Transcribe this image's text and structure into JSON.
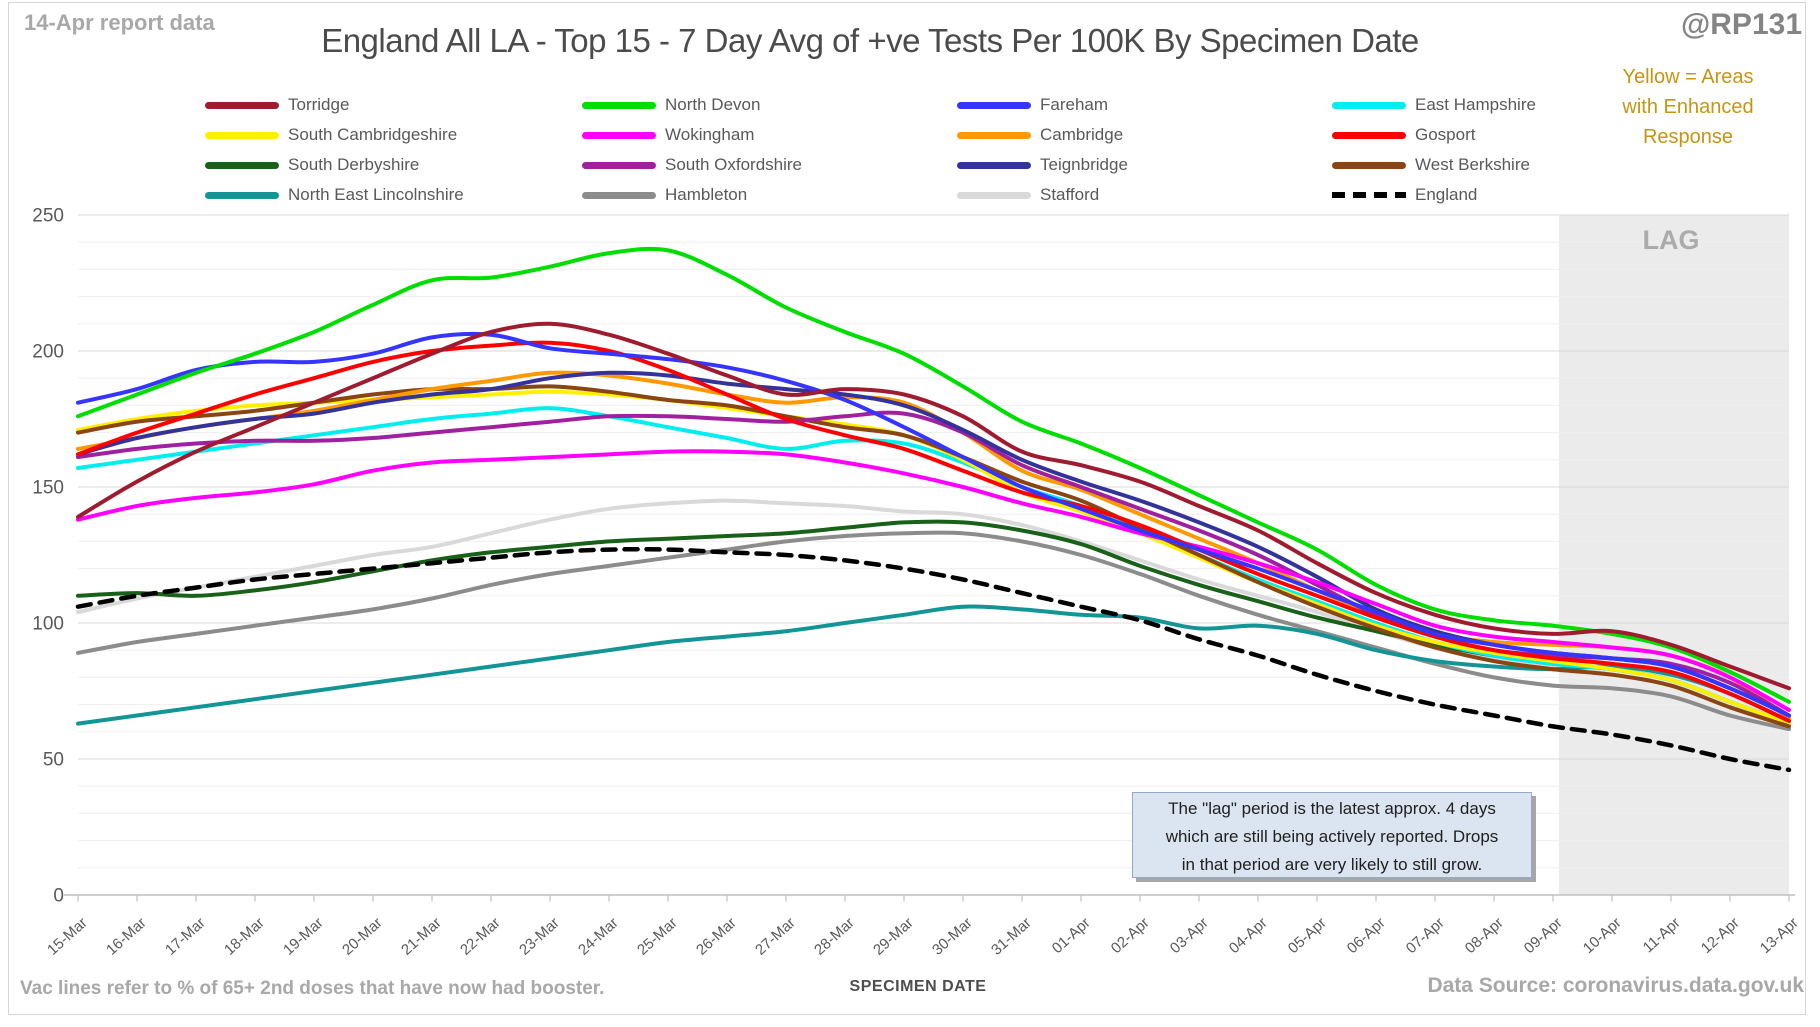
{
  "header": {
    "report_note": "14-Apr report data",
    "handle": "@RP131"
  },
  "annotations": {
    "enhanced_note": [
      "Yellow = Areas",
      "with Enhanced",
      "Response"
    ],
    "lag_note": [
      "The \"lag\" period is the latest approx. 4 days",
      "which are still being actively reported. Drops",
      "in that period are very likely to still grow."
    ],
    "lag_label": "LAG",
    "footer_left": "Vac lines refer to % of 65+ 2nd doses that have now had booster.",
    "source": "Data Source: coronavirus.data.gov.uk"
  },
  "ui_colors": {
    "grid_minor": "#efefef",
    "grid_major": "#d9d9d9",
    "axis_line": "#bfbfbf",
    "tick_label": "#595959",
    "lag_fill": "#ebebeb",
    "lag_text": "#ababab",
    "note_bg": "#dbe5f2",
    "enhanced_text": "#c79414"
  },
  "chart_data": {
    "type": "line",
    "title": "England All LA - Top 15 - 7 Day Avg of +ve Tests Per 100K By Specimen Date",
    "xlabel": "SPECIMEN DATE",
    "ylabel": "",
    "ylim": [
      0,
      250
    ],
    "yticks": [
      0,
      50,
      100,
      150,
      200,
      250
    ],
    "minor_grid_step": 10,
    "grid": true,
    "legend_position": "top",
    "lag_region": {
      "start_index": 25.1,
      "label": "LAG",
      "covers": "approx. last 4 days"
    },
    "x": [
      "15-Mar",
      "16-Mar",
      "17-Mar",
      "18-Mar",
      "19-Mar",
      "20-Mar",
      "21-Mar",
      "22-Mar",
      "23-Mar",
      "24-Mar",
      "25-Mar",
      "26-Mar",
      "27-Mar",
      "28-Mar",
      "29-Mar",
      "30-Mar",
      "31-Mar",
      "01-Apr",
      "02-Apr",
      "03-Apr",
      "04-Apr",
      "05-Apr",
      "06-Apr",
      "07-Apr",
      "08-Apr",
      "09-Apr",
      "10-Apr",
      "11-Apr",
      "12-Apr",
      "13-Apr"
    ],
    "series": [
      {
        "name": "Torridge",
        "color": "#9e1b30",
        "dash": false,
        "values": [
          139,
          152,
          163,
          172,
          181,
          190,
          199,
          207,
          210,
          206,
          199,
          191,
          184,
          186,
          184,
          176,
          163,
          158,
          152,
          143,
          134,
          122,
          111,
          103,
          98,
          96,
          97,
          92,
          84,
          76
        ]
      },
      {
        "name": "North Devon",
        "color": "#00dd00",
        "dash": false,
        "values": [
          176,
          184,
          192,
          199,
          207,
          217,
          226,
          227,
          231,
          236,
          237,
          228,
          216,
          207,
          199,
          187,
          174,
          166,
          157,
          147,
          137,
          127,
          114,
          105,
          101,
          99,
          96,
          91,
          82,
          71
        ]
      },
      {
        "name": "Fareham",
        "color": "#3535ff",
        "dash": false,
        "values": [
          181,
          186,
          193,
          196,
          196,
          199,
          205,
          206,
          201,
          199,
          197,
          194,
          189,
          182,
          172,
          161,
          150,
          142,
          134,
          127,
          120,
          112,
          104,
          96,
          92,
          89,
          87,
          84,
          76,
          66
        ]
      },
      {
        "name": "East Hampshire",
        "color": "#00eeee",
        "dash": false,
        "values": [
          157,
          160,
          163,
          166,
          169,
          172,
          175,
          177,
          179,
          176,
          172,
          168,
          164,
          167,
          166,
          159,
          150,
          143,
          134,
          125,
          116,
          108,
          100,
          93,
          88,
          85,
          83,
          79,
          71,
          63
        ]
      },
      {
        "name": "South Cambridgeshire",
        "color": "#fff000",
        "dash": false,
        "values": [
          171,
          175,
          178,
          180,
          181,
          182,
          183,
          184,
          185,
          184,
          182,
          179,
          176,
          173,
          169,
          160,
          148,
          141,
          133,
          124,
          115,
          107,
          99,
          93,
          89,
          86,
          83,
          79,
          71,
          63
        ]
      },
      {
        "name": "Wokingham",
        "color": "#ff00ff",
        "dash": false,
        "values": [
          138,
          143,
          146,
          148,
          151,
          156,
          159,
          160,
          161,
          162,
          163,
          163,
          162,
          159,
          155,
          150,
          144,
          139,
          133,
          128,
          122,
          115,
          107,
          99,
          95,
          93,
          91,
          88,
          80,
          68
        ]
      },
      {
        "name": "Cambridge",
        "color": "#ff9900",
        "dash": false,
        "values": [
          164,
          168,
          172,
          175,
          178,
          182,
          186,
          189,
          192,
          191,
          188,
          184,
          181,
          183,
          181,
          170,
          156,
          149,
          140,
          131,
          122,
          112,
          103,
          96,
          93,
          92,
          91,
          88,
          80,
          65
        ]
      },
      {
        "name": "Gosport",
        "color": "#fe0000",
        "dash": false,
        "values": [
          162,
          170,
          177,
          184,
          190,
          196,
          200,
          202,
          203,
          200,
          193,
          184,
          175,
          169,
          164,
          156,
          148,
          143,
          136,
          127,
          118,
          110,
          102,
          95,
          90,
          87,
          85,
          82,
          74,
          64
        ]
      },
      {
        "name": "South Derbyshire",
        "color": "#186118",
        "dash": false,
        "values": [
          110,
          111,
          110,
          112,
          115,
          119,
          123,
          126,
          128,
          130,
          131,
          132,
          133,
          135,
          137,
          137,
          134,
          129,
          121,
          114,
          108,
          102,
          97,
          92,
          88,
          85,
          83,
          79,
          71,
          63
        ]
      },
      {
        "name": "South Oxfordshire",
        "color": "#a020a0",
        "dash": false,
        "values": [
          161,
          164,
          166,
          167,
          167,
          168,
          170,
          172,
          174,
          176,
          176,
          175,
          174,
          176,
          177,
          170,
          158,
          150,
          142,
          134,
          125,
          114,
          103,
          95,
          90,
          88,
          87,
          85,
          78,
          66
        ]
      },
      {
        "name": "Teignbridge",
        "color": "#333399",
        "dash": false,
        "values": [
          162,
          168,
          172,
          175,
          177,
          181,
          184,
          186,
          190,
          192,
          191,
          188,
          186,
          184,
          180,
          171,
          160,
          152,
          145,
          137,
          128,
          117,
          105,
          97,
          92,
          89,
          87,
          84,
          76,
          66
        ]
      },
      {
        "name": "West Berkshire",
        "color": "#8b4513",
        "dash": false,
        "values": [
          170,
          174,
          176,
          178,
          181,
          184,
          186,
          186,
          187,
          185,
          182,
          180,
          176,
          172,
          169,
          161,
          152,
          145,
          135,
          125,
          115,
          106,
          98,
          91,
          86,
          83,
          81,
          77,
          69,
          62
        ]
      },
      {
        "name": "North East Lincolnshire",
        "color": "#149595",
        "dash": false,
        "values": [
          63,
          66,
          69,
          72,
          75,
          78,
          81,
          84,
          87,
          90,
          93,
          95,
          97,
          100,
          103,
          106,
          105,
          103,
          102,
          98,
          99,
          96,
          90,
          86,
          84,
          83,
          84,
          81,
          74,
          64
        ]
      },
      {
        "name": "Hambleton",
        "color": "#8c8c8c",
        "dash": false,
        "values": [
          89,
          93,
          96,
          99,
          102,
          105,
          109,
          114,
          118,
          121,
          124,
          127,
          130,
          132,
          133,
          133,
          130,
          125,
          118,
          110,
          103,
          97,
          91,
          85,
          80,
          77,
          76,
          73,
          66,
          61
        ]
      },
      {
        "name": "Stafford",
        "color": "#d9d9d9",
        "dash": false,
        "values": [
          104,
          109,
          113,
          117,
          121,
          125,
          128,
          133,
          138,
          142,
          144,
          145,
          144,
          143,
          141,
          140,
          136,
          130,
          123,
          116,
          110,
          104,
          97,
          91,
          87,
          84,
          81,
          77,
          69,
          62
        ]
      },
      {
        "name": "England",
        "color": "#000000",
        "dash": true,
        "values": [
          106,
          110,
          113,
          116,
          118,
          120,
          122,
          124,
          126,
          127,
          127,
          126,
          125,
          123,
          120,
          116,
          111,
          106,
          101,
          94,
          88,
          81,
          75,
          70,
          66,
          62,
          59,
          55,
          50,
          46
        ]
      }
    ]
  }
}
